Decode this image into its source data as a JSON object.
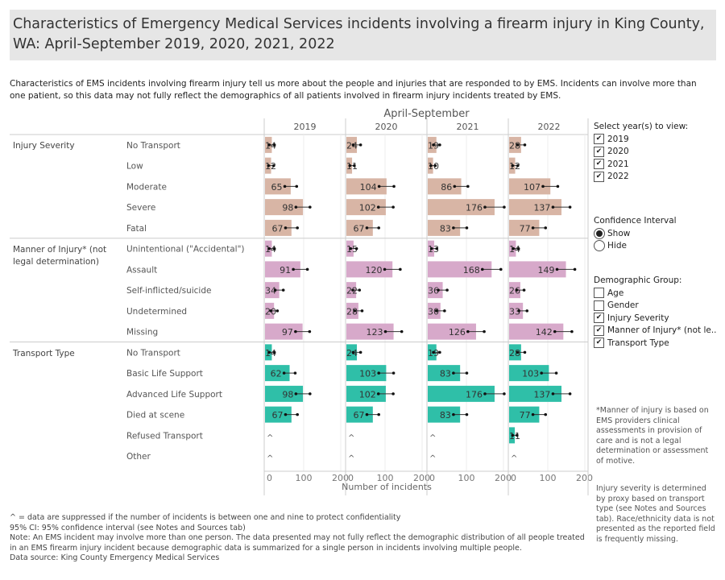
{
  "title": "Characteristics of Emergency Medical Services incidents involving a firearm injury in King County, WA: April-September 2019, 2020, 2021, 2022",
  "description": "Characteristics of EMS incidents involving firearm injury tell us more about the people and injuries that are responded to by EMS. Incidents can involve more than one patient, so this data may not fully reflect the demographics of all patients involved in firearm injury incidents treated by EMS.",
  "chart_data": {
    "type": "bar",
    "orientation": "horizontal",
    "column_header": "April-September",
    "years": [
      "2019",
      "2020",
      "2021",
      "2022"
    ],
    "xlabel": "Number of incidents",
    "xlim": [
      0,
      215
    ],
    "xticks": [
      "0",
      "100",
      "200"
    ],
    "grid": true,
    "suppressed_marker": "^",
    "groups": [
      {
        "name": "Injury Severity",
        "color": "#d8b5a5",
        "rows": [
          {
            "label": "No Transport",
            "values": [
              14,
              24,
              19,
              28
            ],
            "ci": [
              [
                7,
                21
              ],
              [
                14,
                34
              ],
              [
                11,
                28
              ],
              [
                18,
                38
              ]
            ]
          },
          {
            "label": "Low",
            "values": [
              12,
              11,
              10,
              12
            ],
            "ci": [
              [
                5,
                19
              ],
              [
                5,
                17
              ],
              [
                4,
                16
              ],
              [
                5,
                19
              ]
            ]
          },
          {
            "label": "Moderate",
            "values": [
              65,
              104,
              86,
              107
            ],
            "ci": [
              [
                49,
                81
              ],
              [
                84,
                124
              ],
              [
                68,
                104
              ],
              [
                87,
                127
              ]
            ]
          },
          {
            "label": "Severe",
            "values": [
              98,
              102,
              176,
              137
            ],
            "ci": [
              [
                79,
                117
              ],
              [
                82,
                122
              ],
              [
                150,
                202
              ],
              [
                114,
                160
              ]
            ]
          },
          {
            "label": "Fatal",
            "values": [
              67,
              67,
              83,
              77
            ],
            "ci": [
              [
                51,
                83
              ],
              [
                51,
                83
              ],
              [
                65,
                101
              ],
              [
                60,
                94
              ]
            ]
          }
        ]
      },
      {
        "name": "Manner of Injury* (not legal determination)",
        "color": "#d7a9ca",
        "rows": [
          {
            "label": "Unintentional (\"Accidental\")",
            "values": [
              14,
              15,
              13,
              14
            ],
            "ci": [
              [
                7,
                21
              ],
              [
                7,
                23
              ],
              [
                6,
                20
              ],
              [
                7,
                21
              ]
            ]
          },
          {
            "label": "Assault",
            "values": [
              91,
              120,
              168,
              149
            ],
            "ci": [
              [
                72,
                110
              ],
              [
                99,
                141
              ],
              [
                143,
                193
              ],
              [
                125,
                173
              ]
            ]
          },
          {
            "label": "Self-inflicted/suicide",
            "values": [
              34,
              22,
              36,
              26
            ],
            "ci": [
              [
                23,
                45
              ],
              [
                13,
                31
              ],
              [
                24,
                48
              ],
              [
                16,
                36
              ]
            ]
          },
          {
            "label": "Undetermined",
            "values": [
              20,
              28,
              30,
              33
            ],
            "ci": [
              [
                11,
                29
              ],
              [
                18,
                38
              ],
              [
                19,
                41
              ],
              [
                22,
                44
              ]
            ]
          },
          {
            "label": "Missing",
            "values": [
              97,
              123,
              126,
              142
            ],
            "ci": [
              [
                78,
                116
              ],
              [
                101,
                145
              ],
              [
                104,
                148
              ],
              [
                119,
                165
              ]
            ]
          }
        ]
      },
      {
        "name": "Transport Type",
        "color": "#2fbfa8",
        "rows": [
          {
            "label": "No Transport",
            "values": [
              14,
              24,
              19,
              28
            ],
            "ci": [
              [
                7,
                21
              ],
              [
                14,
                34
              ],
              [
                11,
                28
              ],
              [
                18,
                38
              ]
            ]
          },
          {
            "label": "Basic Life Support",
            "values": [
              62,
              103,
              83,
              103
            ],
            "ci": [
              [
                47,
                77
              ],
              [
                83,
                123
              ],
              [
                65,
                101
              ],
              [
                83,
                123
              ]
            ]
          },
          {
            "label": "Advanced Life Support",
            "values": [
              98,
              102,
              176,
              137
            ],
            "ci": [
              [
                79,
                117
              ],
              [
                82,
                122
              ],
              [
                150,
                202
              ],
              [
                114,
                160
              ]
            ]
          },
          {
            "label": "Died at scene",
            "values": [
              67,
              67,
              83,
              77
            ],
            "ci": [
              [
                51,
                83
              ],
              [
                51,
                83
              ],
              [
                65,
                101
              ],
              [
                60,
                94
              ]
            ]
          },
          {
            "label": "Refused Transport",
            "values": [
              null,
              null,
              null,
              11
            ],
            "ci": [
              null,
              null,
              null,
              [
                5,
                17
              ]
            ]
          },
          {
            "label": "Other",
            "values": [
              null,
              null,
              null,
              null
            ],
            "ci": [
              null,
              null,
              null,
              null
            ]
          }
        ]
      }
    ]
  },
  "filters": {
    "years_title": "Select year(s) to view:",
    "years": [
      {
        "label": "2019",
        "checked": true
      },
      {
        "label": "2020",
        "checked": true
      },
      {
        "label": "2021",
        "checked": true
      },
      {
        "label": "2022",
        "checked": true
      }
    ],
    "ci_title": "Confidence Interval",
    "ci_options": [
      {
        "label": "Show",
        "selected": true
      },
      {
        "label": "Hide",
        "selected": false
      }
    ],
    "demo_title": "Demographic Group:",
    "demo": [
      {
        "label": "Age",
        "checked": false
      },
      {
        "label": "Gender",
        "checked": false
      },
      {
        "label": "Injury Severity",
        "checked": true
      },
      {
        "label": "Manner of Injury* (not le..",
        "checked": true
      },
      {
        "label": "Transport Type",
        "checked": true
      }
    ]
  },
  "side_notes": {
    "manner": "*Manner of injury is based on EMS providers clinical assessments in provision of care and is not a legal determination or assessment of motive.",
    "severity": "Injury severity is determined by proxy based on transport type (see Notes and Sources tab). Race/ethnicity data is not presented as the reported field is frequently missing."
  },
  "footnotes": [
    "^ = data are suppressed if the number of incidents is between one and nine to protect confidentiality",
    "95% CI: 95% confidence interval (see Notes and Sources tab)",
    "Note: An EMS incident may involve more than one person. The data presented may not fully reflect the demographic distribution of all people treated in an EMS firearm injury incident because demographic data is summarized for a single person in incidents involving multiple people.",
    "Data source: King County Emergency Medical Services"
  ]
}
